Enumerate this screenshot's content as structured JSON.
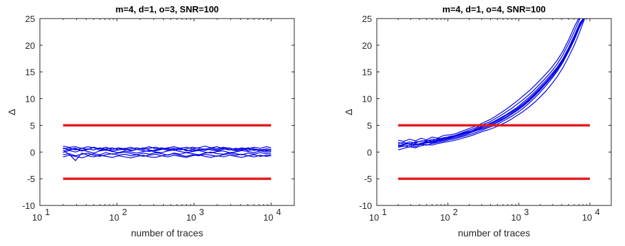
{
  "chart_data": [
    {
      "type": "line",
      "title": "m=4, d=1, o=3, SNR=100",
      "xlabel": "number of traces",
      "ylabel": "Δ",
      "xscale": "log",
      "xlim": [
        10,
        20000
      ],
      "ylim": [
        -10,
        25
      ],
      "xticks": [
        10,
        100,
        1000,
        10000
      ],
      "xtick_labels": [
        {
          "base": "10",
          "exp": "1"
        },
        {
          "base": "10",
          "exp": "2"
        },
        {
          "base": "10",
          "exp": "3"
        },
        {
          "base": "10",
          "exp": "4"
        }
      ],
      "yticks": [
        -10,
        -5,
        0,
        5,
        10,
        15,
        20,
        25
      ],
      "grid": false,
      "thresholds": {
        "color": "#e41a1c",
        "values": [
          5,
          -5
        ],
        "x_range": [
          20,
          10000
        ]
      },
      "series_color": "#0000e6",
      "x": [
        20,
        24,
        29,
        35,
        42,
        50,
        60,
        72,
        87,
        105,
        126,
        151,
        182,
        219,
        263,
        316,
        380,
        457,
        549,
        660,
        794,
        955,
        1148,
        1380,
        1660,
        1995,
        2399,
        2884,
        3467,
        4169,
        5012,
        6026,
        7244,
        8710,
        10000
      ],
      "series": [
        {
          "values": [
            1.1,
            0.9,
            1.0,
            0.7,
            1.0,
            0.8,
            0.6,
            0.9,
            0.5,
            0.7,
            0.4,
            0.6,
            0.8,
            0.5,
            0.7,
            0.9,
            0.6,
            0.8,
            1.0,
            0.7,
            0.9,
            0.6,
            0.8,
            1.1,
            0.8,
            0.6,
            0.9,
            0.7,
            0.5,
            0.8,
            0.6,
            0.9,
            0.7,
            1.0,
            0.8
          ]
        },
        {
          "values": [
            0.6,
            0.8,
            0.4,
            0.7,
            0.5,
            0.9,
            0.6,
            0.3,
            0.5,
            0.8,
            0.6,
            0.9,
            0.5,
            0.7,
            1.0,
            0.6,
            0.8,
            0.5,
            0.7,
            0.4,
            0.6,
            0.9,
            0.7,
            0.5,
            0.8,
            1.0,
            0.6,
            0.4,
            0.7,
            0.5,
            0.8,
            0.6,
            0.4,
            0.6,
            0.5
          ]
        },
        {
          "values": [
            0.2,
            0.5,
            0.7,
            0.3,
            0.6,
            0.4,
            0.8,
            0.5,
            0.2,
            0.4,
            0.7,
            0.3,
            0.5,
            0.8,
            0.4,
            0.2,
            0.5,
            0.7,
            0.3,
            0.6,
            0.4,
            0.2,
            0.5,
            0.3,
            0.6,
            0.4,
            0.7,
            0.5,
            0.2,
            0.4,
            0.6,
            0.3,
            0.5,
            0.2,
            0.4
          ]
        },
        {
          "values": [
            -0.1,
            0.3,
            0.0,
            0.4,
            0.1,
            -0.2,
            0.2,
            0.4,
            0.1,
            -0.1,
            0.2,
            0.0,
            -0.2,
            0.1,
            0.3,
            0.0,
            -0.1,
            0.2,
            0.4,
            0.1,
            -0.1,
            0.1,
            0.3,
            0.0,
            -0.2,
            0.1,
            0.2,
            -0.1,
            0.0,
            0.3,
            0.1,
            -0.1,
            0.2,
            0.0,
            0.1
          ]
        },
        {
          "values": [
            0.3,
            -0.4,
            -1.6,
            -0.2,
            -0.6,
            -0.3,
            -0.5,
            -0.1,
            -0.4,
            -0.2,
            0.0,
            -0.3,
            -0.5,
            -0.2,
            -0.4,
            -0.1,
            -0.3,
            -0.6,
            -0.2,
            -0.4,
            -0.1,
            -0.3,
            -0.5,
            -0.2,
            0.0,
            -0.3,
            -0.4,
            -0.1,
            -0.3,
            -0.5,
            -0.2,
            -0.4,
            -0.1,
            -0.3,
            -0.2
          ]
        },
        {
          "values": [
            -0.5,
            -0.3,
            -0.7,
            -0.4,
            -0.2,
            -0.6,
            -0.8,
            -0.5,
            -0.3,
            -0.6,
            -0.4,
            -0.7,
            -0.5,
            -0.8,
            -0.6,
            -0.4,
            -0.7,
            -0.5,
            -0.3,
            -0.6,
            -0.8,
            -0.5,
            -0.7,
            -0.4,
            -0.6,
            -0.8,
            -0.5,
            -0.3,
            -0.6,
            -0.4,
            -0.7,
            -0.5,
            -0.8,
            -0.6,
            -0.5
          ]
        },
        {
          "values": [
            -0.9,
            -0.6,
            -0.8,
            -1.1,
            -0.7,
            -0.9,
            -0.6,
            -0.8,
            -1.0,
            -0.7,
            -0.9,
            -1.1,
            -0.8,
            -0.6,
            -0.9,
            -1.0,
            -0.7,
            -0.9,
            -0.6,
            -0.8,
            -1.0,
            -0.7,
            -0.5,
            -0.8,
            -1.0,
            -0.7,
            -0.9,
            -0.6,
            -0.8,
            -1.0,
            -0.7,
            -0.9,
            -0.6,
            -0.8,
            -0.7
          ]
        },
        {
          "values": [
            0.8,
            0.4,
            0.6,
            0.2,
            0.5,
            0.9,
            0.3,
            0.6,
            0.8,
            0.4,
            0.6,
            0.2,
            0.5,
            0.3,
            0.1,
            0.4,
            0.6,
            0.3,
            0.5,
            0.8,
            0.2,
            0.5,
            0.3,
            0.6,
            0.4,
            0.2,
            0.5,
            0.8,
            0.4,
            0.6,
            0.3,
            0.5,
            0.2,
            0.4,
            0.3
          ]
        }
      ]
    },
    {
      "type": "line",
      "title": "m=4, d=1, o=4, SNR=100",
      "xlabel": "number of traces",
      "ylabel": "Δ",
      "xscale": "log",
      "xlim": [
        10,
        20000
      ],
      "ylim": [
        -10,
        25
      ],
      "xticks": [
        10,
        100,
        1000,
        10000
      ],
      "xtick_labels": [
        {
          "base": "10",
          "exp": "1"
        },
        {
          "base": "10",
          "exp": "2"
        },
        {
          "base": "10",
          "exp": "3"
        },
        {
          "base": "10",
          "exp": "4"
        }
      ],
      "yticks": [
        -10,
        -5,
        0,
        5,
        10,
        15,
        20,
        25
      ],
      "grid": false,
      "thresholds": {
        "color": "#e41a1c",
        "values": [
          5,
          -5
        ],
        "x_range": [
          20,
          10000
        ]
      },
      "series_color": "#0000e6",
      "x": [
        20,
        24,
        29,
        35,
        42,
        50,
        60,
        72,
        87,
        105,
        126,
        151,
        182,
        219,
        263,
        316,
        380,
        457,
        549,
        660,
        794,
        955,
        1148,
        1380,
        1660,
        1995,
        2399,
        2884,
        3467,
        4169,
        5012,
        6026,
        7244,
        8710
      ],
      "series": [
        {
          "values": [
            1.6,
            1.8,
            1.5,
            1.9,
            2.0,
            2.2,
            2.1,
            2.5,
            2.6,
            2.9,
            3.1,
            3.4,
            3.7,
            4.0,
            4.5,
            4.9,
            5.3,
            5.8,
            6.4,
            7.0,
            7.7,
            8.4,
            9.3,
            10.2,
            11.2,
            12.3,
            13.4,
            14.6,
            15.9,
            17.5,
            19.5,
            21.8,
            24.2,
            25.5
          ]
        },
        {
          "values": [
            1.2,
            1.4,
            1.6,
            1.3,
            1.7,
            1.9,
            2.0,
            2.2,
            2.5,
            2.7,
            3.0,
            3.3,
            3.6,
            4.0,
            4.3,
            4.8,
            5.2,
            5.7,
            6.2,
            6.9,
            7.5,
            8.2,
            9.0,
            9.9,
            10.9,
            12.0,
            13.1,
            14.3,
            15.6,
            17.2,
            19.2,
            21.4,
            23.8,
            25.5
          ]
        },
        {
          "values": [
            2.2,
            2.0,
            2.4,
            2.1,
            2.6,
            2.3,
            2.8,
            2.6,
            3.1,
            3.2,
            3.4,
            3.8,
            4.2,
            4.6,
            5.0,
            5.5,
            6.0,
            6.6,
            7.3,
            8.0,
            8.8,
            9.6,
            10.5,
            11.4,
            12.4,
            13.5,
            14.6,
            15.8,
            17.2,
            18.9,
            21.0,
            23.4,
            25.5,
            25.5
          ]
        },
        {
          "values": [
            0.4,
            0.7,
            1.0,
            0.8,
            1.2,
            1.4,
            1.3,
            1.6,
            1.8,
            2.0,
            2.2,
            2.5,
            2.8,
            3.1,
            3.5,
            3.9,
            4.2,
            4.6,
            5.1,
            5.6,
            6.2,
            6.9,
            7.6,
            8.4,
            9.3,
            10.3,
            11.4,
            12.7,
            14.1,
            15.8,
            17.8,
            20.0,
            22.6,
            25.5
          ]
        },
        {
          "values": [
            1.0,
            1.2,
            0.9,
            1.4,
            1.5,
            1.8,
            1.7,
            2.0,
            2.2,
            2.5,
            2.7,
            3.0,
            3.3,
            3.7,
            4.1,
            4.4,
            4.8,
            5.3,
            5.8,
            6.4,
            7.1,
            7.8,
            8.6,
            9.5,
            10.5,
            11.6,
            12.8,
            14.0,
            15.4,
            17.0,
            19.0,
            21.2,
            23.6,
            25.5
          ]
        },
        {
          "values": [
            1.8,
            1.5,
            1.9,
            1.7,
            2.1,
            2.0,
            2.4,
            2.3,
            2.7,
            2.8,
            3.1,
            3.5,
            3.9,
            4.3,
            4.7,
            5.2,
            5.6,
            6.2,
            6.8,
            7.5,
            8.2,
            9.0,
            9.8,
            10.7,
            11.7,
            12.8,
            13.9,
            15.1,
            16.5,
            18.2,
            20.3,
            22.6,
            25.0,
            25.5
          ]
        },
        {
          "values": [
            1.4,
            1.1,
            1.3,
            1.6,
            1.4,
            1.7,
            1.9,
            2.1,
            2.3,
            2.6,
            2.9,
            3.2,
            3.5,
            3.8,
            4.2,
            4.6,
            5.0,
            5.5,
            6.0,
            6.6,
            7.3,
            8.0,
            8.8,
            9.7,
            10.7,
            11.8,
            13.0,
            14.3,
            15.7,
            17.4,
            19.4,
            21.7,
            24.1,
            25.5
          ]
        },
        {
          "values": [
            0.9,
            1.1,
            1.3,
            1.0,
            1.5,
            1.3,
            1.6,
            1.8,
            2.0,
            2.3,
            2.5,
            2.8,
            3.1,
            3.4,
            3.8,
            4.2,
            4.6,
            5.0,
            5.5,
            6.1,
            6.7,
            7.4,
            8.2,
            9.1,
            10.1,
            11.2,
            12.4,
            13.7,
            15.1,
            16.8,
            18.8,
            21.0,
            23.5,
            25.5
          ]
        }
      ]
    }
  ]
}
